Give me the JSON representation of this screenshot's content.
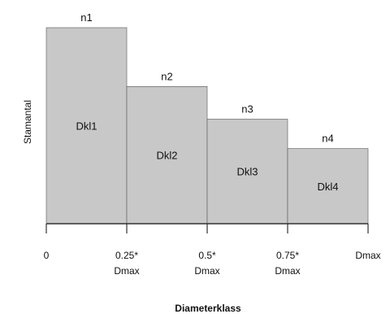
{
  "chart_data": {
    "type": "bar",
    "xlabel": "Diameterklass",
    "ylabel": "Stamantal",
    "x_ticks": [
      {
        "value": 0.0,
        "lines": [
          "0"
        ]
      },
      {
        "value": 0.25,
        "lines": [
          "0.25*",
          "Dmax"
        ]
      },
      {
        "value": 0.5,
        "lines": [
          "0.5*",
          "Dmax"
        ]
      },
      {
        "value": 0.75,
        "lines": [
          "0.75*",
          "Dmax"
        ]
      },
      {
        "value": 1.0,
        "lines": [
          "Dmax"
        ]
      }
    ],
    "bars": [
      {
        "label": "Dkl1",
        "count_label": "n1",
        "x0": 0.0,
        "x1": 0.25,
        "value": 240
      },
      {
        "label": "Dkl2",
        "count_label": "n2",
        "x0": 0.25,
        "x1": 0.5,
        "value": 168
      },
      {
        "label": "Dkl3",
        "count_label": "n3",
        "x0": 0.5,
        "x1": 0.75,
        "value": 128
      },
      {
        "label": "Dkl4",
        "count_label": "n4",
        "x0": 0.75,
        "x1": 1.0,
        "value": 92
      }
    ],
    "ylim": [
      0,
      240
    ],
    "grid": false,
    "legend": "none",
    "bar_color": "#c8c8c8",
    "bar_edge_color": "#555555"
  }
}
